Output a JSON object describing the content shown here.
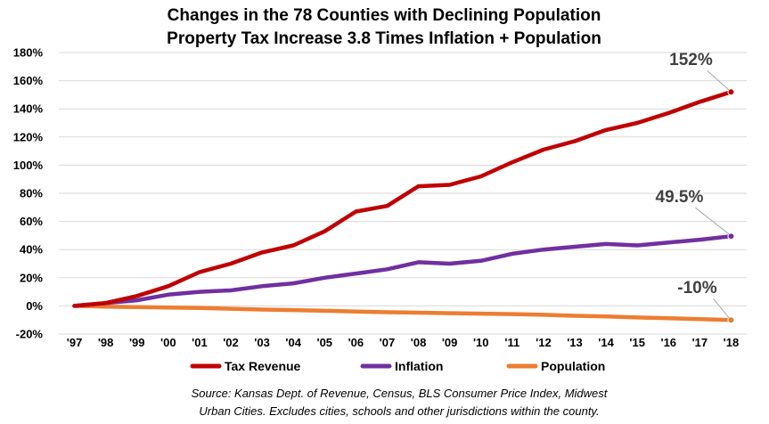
{
  "chart_data": {
    "type": "line",
    "title": "Changes in the 78 Counties with Declining Population",
    "subtitle": "Property Tax Increase 3.8 Times Inflation + Population",
    "categories": [
      "'97",
      "'98",
      "'99",
      "'00",
      "'01",
      "'02",
      "'03",
      "'04",
      "'05",
      "'06",
      "'07",
      "'08",
      "'09",
      "'10",
      "'11",
      "'12",
      "'13",
      "'14",
      "'15",
      "'16",
      "'17",
      "'18"
    ],
    "y_ticks": [
      "-20%",
      "0%",
      "20%",
      "40%",
      "60%",
      "80%",
      "100%",
      "120%",
      "140%",
      "160%",
      "180%"
    ],
    "ylim": [
      -20,
      180
    ],
    "grid": true,
    "legend_position": "bottom",
    "series": [
      {
        "name": "Tax Revenue",
        "color": "#C00000",
        "values": [
          0,
          2,
          7,
          14,
          24,
          30,
          38,
          43,
          53,
          67,
          71,
          85,
          86,
          92,
          102,
          111,
          117,
          125,
          130,
          137,
          145,
          152
        ]
      },
      {
        "name": "Inflation",
        "color": "#7030A0",
        "values": [
          0,
          2,
          4,
          8,
          10,
          11,
          14,
          16,
          20,
          23,
          26,
          31,
          30,
          32,
          37,
          40,
          42,
          44,
          43,
          45,
          47,
          49.5
        ]
      },
      {
        "name": "Population",
        "color": "#ED7D31",
        "values": [
          0,
          -0.5,
          -0.8,
          -1.2,
          -1.5,
          -2,
          -2.6,
          -3,
          -3.5,
          -4,
          -4.5,
          -4.8,
          -5.2,
          -5.5,
          -5.8,
          -6.3,
          -7,
          -7.5,
          -8.2,
          -8.8,
          -9.4,
          -10
        ]
      }
    ],
    "annotations": [
      {
        "series": "Tax Revenue",
        "text": "152%"
      },
      {
        "series": "Inflation",
        "text": "49.5%"
      },
      {
        "series": "Population",
        "text": "-10%"
      }
    ],
    "source": [
      "Source: Kansas Dept. of Revenue, Census, BLS Consumer Price Index, Midwest",
      "Urban Cities.  Excludes cities, schools and other jurisdictions within the county."
    ]
  }
}
